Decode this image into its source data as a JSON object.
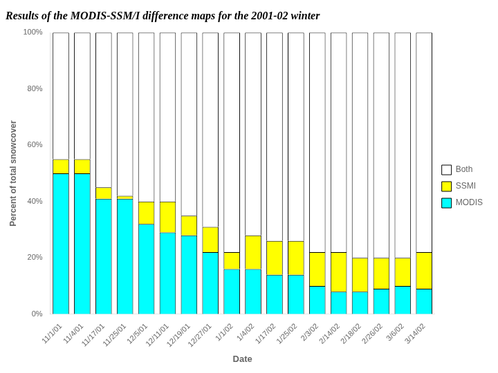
{
  "chart_data": {
    "type": "bar",
    "title": "Results of the MODIS-SSM/I difference maps for the 2001-02 winter",
    "xlabel": "Date",
    "ylabel": "Percent of total snowcover",
    "categories": [
      "11/1/01",
      "11/4/01",
      "11/17/01",
      "11/25/01",
      "12/5/01",
      "12/11/01",
      "12/19/01",
      "12/27/01",
      "1/1/02",
      "1/4/02",
      "1/17/02",
      "1/25/02",
      "2/3/02",
      "2/14/02",
      "2/18/02",
      "2/26/02",
      "3/6/02",
      "3/14/02"
    ],
    "series": [
      {
        "name": "MODIS",
        "color": "#00FFFF",
        "values": [
          50,
          50,
          41,
          41,
          32,
          29,
          28,
          22,
          16,
          16,
          14,
          14,
          10,
          8,
          8,
          9,
          10,
          9
        ]
      },
      {
        "name": "SSMI",
        "color": "#FFFF00",
        "values": [
          5,
          5,
          4,
          1,
          8,
          11,
          7,
          9,
          6,
          12,
          12,
          12,
          12,
          14,
          12,
          11,
          10,
          13
        ]
      },
      {
        "name": "Both",
        "color": "#FFFFFF",
        "values": [
          45,
          45,
          55,
          58,
          60,
          60,
          65,
          69,
          78,
          72,
          74,
          74,
          78,
          78,
          80,
          80,
          80,
          78
        ]
      }
    ],
    "stacked": true,
    "ylim": [
      0,
      100
    ],
    "yticks": [
      {
        "value": 0,
        "label": "0%"
      },
      {
        "value": 20,
        "label": "20%"
      },
      {
        "value": 40,
        "label": "40%"
      },
      {
        "value": 60,
        "label": "60%"
      },
      {
        "value": 80,
        "label": "80%"
      },
      {
        "value": 100,
        "label": "100%"
      }
    ],
    "grid": false,
    "legend": "right"
  }
}
